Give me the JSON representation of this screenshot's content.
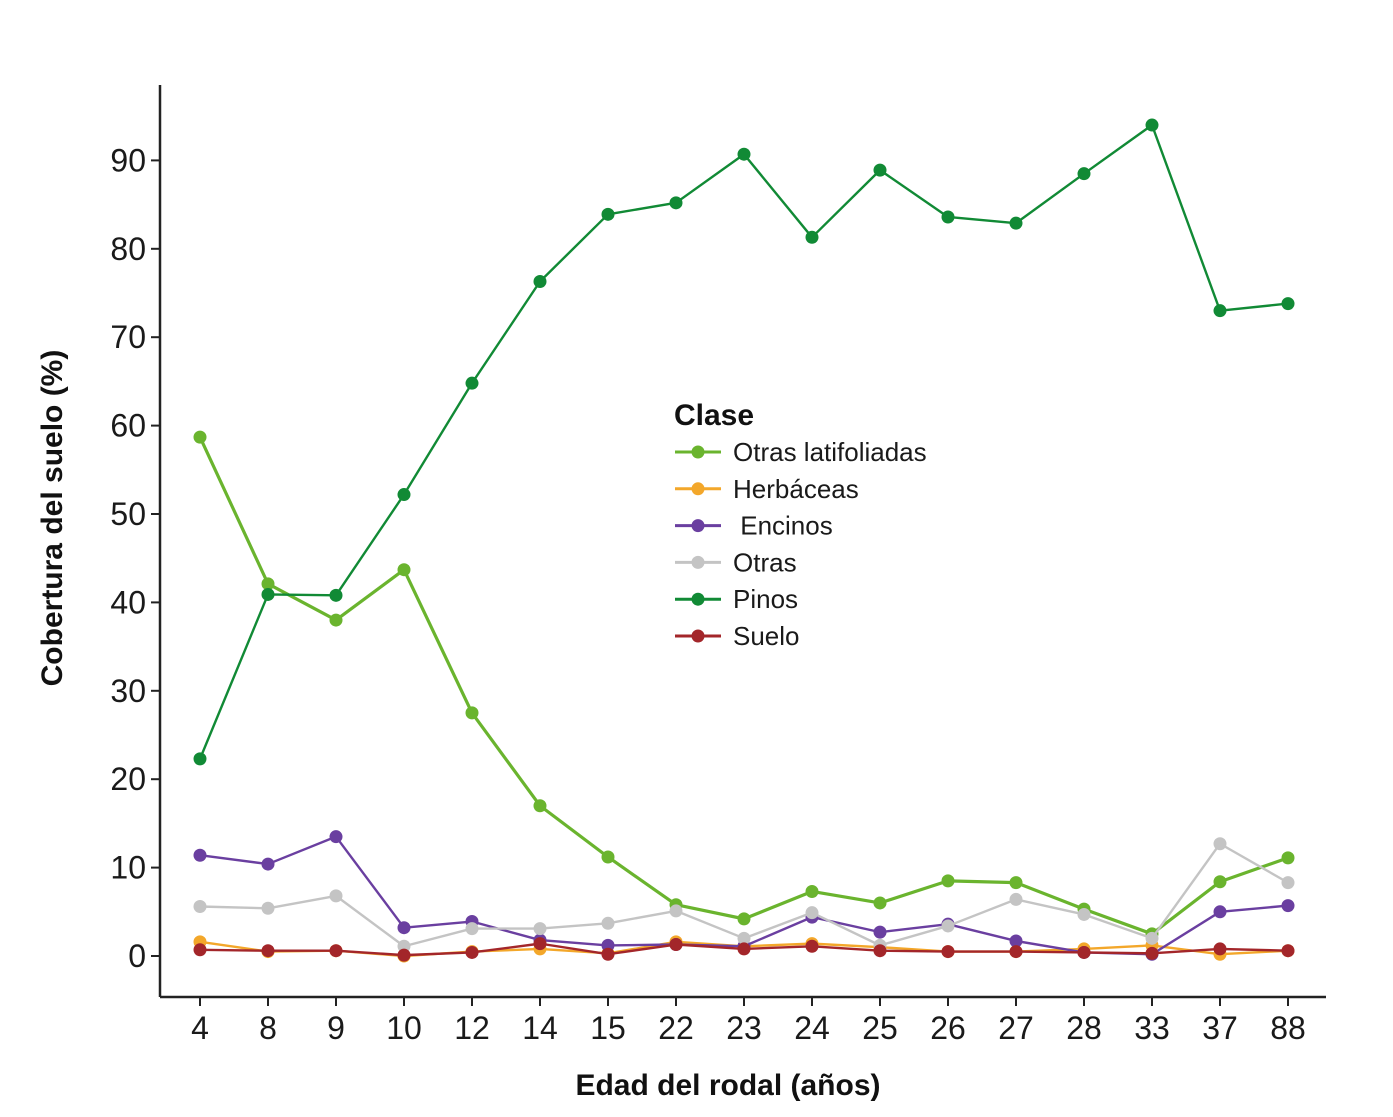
{
  "chart_data": {
    "type": "line",
    "xlabel": "Edad del rodal (años)",
    "ylabel": "Cobertura del suelo (%)",
    "x": [
      "4",
      "8",
      "9",
      "10",
      "12",
      "14",
      "15",
      "22",
      "23",
      "24",
      "25",
      "26",
      "27",
      "28",
      "33",
      "37",
      "88"
    ],
    "yticks": [
      "0",
      "10",
      "20",
      "30",
      "40",
      "50",
      "60",
      "70",
      "80",
      "90"
    ],
    "ylim": [
      -4.5,
      98
    ],
    "grid": false,
    "legend": {
      "title": "Clase",
      "placement": "center"
    },
    "series": [
      {
        "name": "Otras latifoliadas",
        "color": "#6ab42e",
        "values": [
          58.7,
          42.1,
          38.0,
          43.7,
          27.5,
          17.0,
          11.2,
          5.8,
          4.2,
          7.3,
          6.0,
          8.5,
          8.3,
          5.3,
          2.5,
          8.4,
          11.1
        ]
      },
      {
        "name": "Herbáceas",
        "color": "#f3a72a",
        "values": [
          1.6,
          0.5,
          0.6,
          0.0,
          0.5,
          0.8,
          0.3,
          1.6,
          1.1,
          1.4,
          1.0,
          0.5,
          0.5,
          0.8,
          1.2,
          0.2,
          0.6
        ]
      },
      {
        "name": " Encinos",
        "color": "#6a3fa0",
        "values": [
          11.4,
          10.4,
          13.5,
          3.2,
          3.9,
          1.8,
          1.2,
          1.3,
          1.1,
          4.4,
          2.7,
          3.6,
          1.7,
          0.4,
          0.2,
          5.0,
          5.7
        ]
      },
      {
        "name": "Otras",
        "color": "#c4c4c4",
        "values": [
          5.6,
          5.4,
          6.8,
          1.1,
          3.1,
          3.1,
          3.7,
          5.1,
          2.0,
          4.9,
          1.2,
          3.4,
          6.4,
          4.7,
          2.0,
          12.7,
          8.3
        ]
      },
      {
        "name": "Pinos",
        "color": "#118a35",
        "values": [
          22.3,
          40.9,
          40.8,
          52.2,
          64.8,
          76.3,
          83.9,
          85.2,
          90.7,
          81.3,
          88.9,
          83.6,
          82.9,
          88.5,
          94.0,
          73.0,
          73.8
        ]
      },
      {
        "name": "Suelo",
        "color": "#a3262a",
        "values": [
          0.7,
          0.6,
          0.6,
          0.1,
          0.4,
          1.4,
          0.2,
          1.3,
          0.8,
          1.1,
          0.6,
          0.5,
          0.5,
          0.4,
          0.3,
          0.8,
          0.6
        ]
      }
    ]
  }
}
